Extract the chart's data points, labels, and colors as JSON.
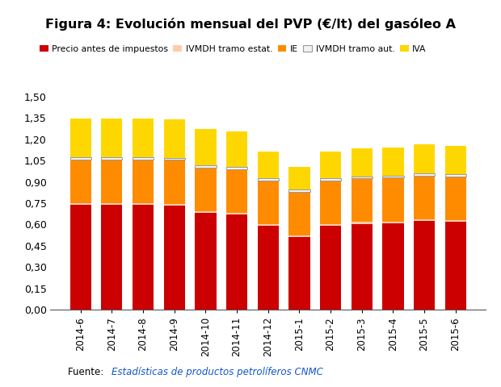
{
  "title": "Figura 4: Evolución mensual del PVP (€/lt) del gasóleo A",
  "categories": [
    "2014-6",
    "2014-7",
    "2014-8",
    "2014-9",
    "2014-10",
    "2014-11",
    "2014-12",
    "2015-1",
    "2015-2",
    "2015-3",
    "2015-4",
    "2015-5",
    "2015-6"
  ],
  "series": {
    "Precio antes de impuestos": [
      0.74,
      0.74,
      0.74,
      0.735,
      0.68,
      0.67,
      0.59,
      0.51,
      0.59,
      0.605,
      0.61,
      0.625,
      0.618
    ],
    "IVMDH tramo estat.": [
      0.012,
      0.012,
      0.012,
      0.012,
      0.012,
      0.012,
      0.012,
      0.012,
      0.012,
      0.012,
      0.012,
      0.012,
      0.012
    ],
    "IE": [
      0.307,
      0.307,
      0.307,
      0.307,
      0.307,
      0.307,
      0.307,
      0.307,
      0.307,
      0.307,
      0.307,
      0.307,
      0.307
    ],
    "IVMDH tramo aut.": [
      0.016,
      0.016,
      0.016,
      0.016,
      0.016,
      0.016,
      0.016,
      0.016,
      0.016,
      0.016,
      0.016,
      0.016,
      0.016
    ],
    "IVA": [
      0.272,
      0.272,
      0.273,
      0.272,
      0.258,
      0.248,
      0.19,
      0.163,
      0.187,
      0.197,
      0.198,
      0.205,
      0.2
    ]
  },
  "colors": {
    "Precio antes de impuestos": "#CC0000",
    "IVMDH tramo estat.": "#FFCCAA",
    "IE": "#FF8C00",
    "IVMDH tramo aut.": "#F2F2F2",
    "IVA": "#FFD700"
  },
  "edgecolors": {
    "Precio antes de impuestos": "none",
    "IVMDH tramo estat.": "none",
    "IE": "none",
    "IVMDH tramo aut.": "#999999",
    "IVA": "none"
  },
  "ylim": [
    0.0,
    1.5
  ],
  "yticks": [
    0.0,
    0.15,
    0.3,
    0.45,
    0.6,
    0.75,
    0.9,
    1.05,
    1.2,
    1.35,
    1.5
  ],
  "ytick_labels": [
    "0,00",
    "0,15",
    "0,30",
    "0,45",
    "0,60",
    "0,75",
    "0,90",
    "1,05",
    "1,20",
    "1,35",
    "1,50"
  ],
  "source_text": "Fuente: ",
  "source_link": "Estadísticas de productos petrolíferos CNMC",
  "background_color": "#FFFFFF",
  "bar_width": 0.68
}
